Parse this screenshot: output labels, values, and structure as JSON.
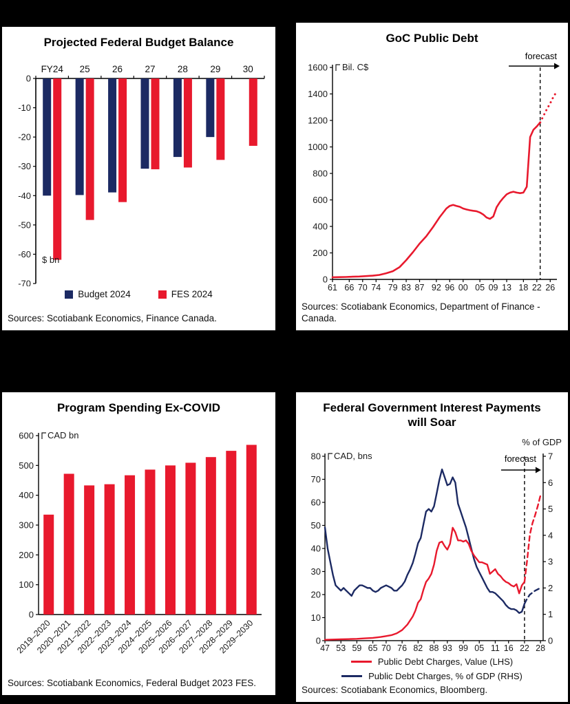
{
  "colors": {
    "red": "#E8192D",
    "navy": "#1C2A63",
    "axis": "#000000",
    "text": "#1A1A1A"
  },
  "panels": [
    {
      "title": "Projected Federal Budget Balance",
      "sources": "Sources: Scotiabank Economics, Finance Canada.",
      "legend": [
        {
          "label": "Budget 2024",
          "color_key": "navy"
        },
        {
          "label": "FES 2024",
          "color_key": "red"
        }
      ]
    },
    {
      "title": "GoC Public Debt",
      "sources": "Sources: Scotiabank Economics, Department of Finance - Canada."
    },
    {
      "title": "Program Spending Ex-COVID",
      "sources": "Sources: Scotiabank Economics, Federal Budget 2023 FES."
    },
    {
      "title": "Federal Government Interest Payments will Soar",
      "sources": "Sources: Scotiabank Economics, Bloomberg.",
      "legend": [
        {
          "label": "Public Debt Charges, Value (LHS)",
          "color_key": "red"
        },
        {
          "label": "Public Debt Charges, % of GDP (RHS)",
          "color_key": "navy"
        }
      ]
    }
  ],
  "chart_data": [
    {
      "type": "bar",
      "title": "Projected Federal Budget Balance",
      "categories": [
        "FY24",
        "25",
        "26",
        "27",
        "28",
        "29",
        "30"
      ],
      "series": [
        {
          "name": "Budget 2024",
          "color_key": "navy",
          "values": [
            -40.0,
            -39.8,
            -38.9,
            -30.8,
            -26.8,
            -20.0,
            null
          ]
        },
        {
          "name": "FES 2024",
          "color_key": "red",
          "values": [
            -61.9,
            -48.3,
            -42.2,
            -31.0,
            -30.4,
            -27.8,
            -23.0
          ]
        }
      ],
      "ylabel": "$ bn",
      "ylim": [
        -70,
        0
      ],
      "yticks": [
        0,
        -10,
        -20,
        -30,
        -40,
        -50,
        -60,
        -70
      ],
      "legend_position": "bottom"
    },
    {
      "type": "line",
      "title": "GoC Public Debt",
      "unit": "Bil. C$",
      "annotation": "forecast",
      "xlim": [
        1961,
        2028
      ],
      "ylim": [
        0,
        1600
      ],
      "yticks": [
        0,
        200,
        400,
        600,
        800,
        1000,
        1200,
        1400,
        1600
      ],
      "xticks": [
        {
          "label": "61",
          "x": 1961
        },
        {
          "label": "66",
          "x": 1966
        },
        {
          "label": "70",
          "x": 1970
        },
        {
          "label": "74",
          "x": 1974
        },
        {
          "label": "79",
          "x": 1979
        },
        {
          "label": "83",
          "x": 1983
        },
        {
          "label": "87",
          "x": 1987
        },
        {
          "label": "92",
          "x": 1992
        },
        {
          "label": "96",
          "x": 1996
        },
        {
          "label": "00",
          "x": 2000
        },
        {
          "label": "05",
          "x": 2005
        },
        {
          "label": "09",
          "x": 2009
        },
        {
          "label": "13",
          "x": 2013
        },
        {
          "label": "18",
          "x": 2018
        },
        {
          "label": "22",
          "x": 2022
        },
        {
          "label": "26",
          "x": 2026
        }
      ],
      "forecast_x": 2023,
      "series": [
        {
          "name": "GoC public debt",
          "color_key": "red",
          "points": [
            [
              1961,
              16
            ],
            [
              1963,
              17
            ],
            [
              1965,
              18
            ],
            [
              1967,
              20
            ],
            [
              1969,
              22
            ],
            [
              1971,
              25
            ],
            [
              1973,
              28
            ],
            [
              1975,
              34
            ],
            [
              1977,
              46
            ],
            [
              1979,
              62
            ],
            [
              1981,
              92
            ],
            [
              1983,
              145
            ],
            [
              1985,
              205
            ],
            [
              1987,
              270
            ],
            [
              1989,
              325
            ],
            [
              1991,
              395
            ],
            [
              1993,
              470
            ],
            [
              1995,
              535
            ],
            [
              1996,
              555
            ],
            [
              1997,
              562
            ],
            [
              1998,
              555
            ],
            [
              1999,
              548
            ],
            [
              2000,
              535
            ],
            [
              2001,
              528
            ],
            [
              2002,
              522
            ],
            [
              2003,
              518
            ],
            [
              2004,
              515
            ],
            [
              2005,
              505
            ],
            [
              2006,
              490
            ],
            [
              2007,
              467
            ],
            [
              2008,
              457
            ],
            [
              2009,
              475
            ],
            [
              2010,
              545
            ],
            [
              2011,
              585
            ],
            [
              2012,
              615
            ],
            [
              2013,
              642
            ],
            [
              2014,
              655
            ],
            [
              2015,
              662
            ],
            [
              2016,
              655
            ],
            [
              2017,
              651
            ],
            [
              2018,
              655
            ],
            [
              2019,
              700
            ],
            [
              2020,
              1075
            ],
            [
              2021,
              1130
            ],
            [
              2022,
              1155
            ],
            [
              2023,
              1185
            ]
          ],
          "forecast_points": [
            [
              2023,
              1185
            ],
            [
              2024,
              1235
            ],
            [
              2025,
              1285
            ],
            [
              2026,
              1330
            ],
            [
              2027,
              1380
            ],
            [
              2028,
              1420
            ]
          ]
        }
      ]
    },
    {
      "type": "bar",
      "title": "Program Spending Ex-COVID",
      "unit": "CAD bn",
      "color_key": "red",
      "categories": [
        "2019–2020",
        "2020–2021",
        "2021–2022",
        "2022–2023",
        "2023–2024",
        "2024–2025",
        "2025–2026",
        "2026–2027",
        "2027–2028",
        "2028–2029",
        "2029–2030"
      ],
      "values": [
        335,
        472,
        433,
        437,
        467,
        486,
        500,
        509,
        528,
        549,
        569
      ],
      "ylim": [
        0,
        600
      ],
      "yticks": [
        0,
        100,
        200,
        300,
        400,
        500,
        600
      ]
    },
    {
      "type": "line",
      "title": "Federal Government Interest Payments will Soar",
      "left_unit": "CAD, bns",
      "right_unit": "% of GDP",
      "annotation": "forecast",
      "xlim": [
        1947,
        2029
      ],
      "left_ylim": [
        0,
        80
      ],
      "right_ylim": [
        0,
        7
      ],
      "left_yticks": [
        0,
        10,
        20,
        30,
        40,
        50,
        60,
        70,
        80
      ],
      "right_yticks": [
        0,
        1,
        2,
        3,
        4,
        5,
        6,
        7
      ],
      "xticks": [
        {
          "label": "47",
          "x": 1947
        },
        {
          "label": "53",
          "x": 1953
        },
        {
          "label": "59",
          "x": 1959
        },
        {
          "label": "65",
          "x": 1965
        },
        {
          "label": "70",
          "x": 1970
        },
        {
          "label": "76",
          "x": 1976
        },
        {
          "label": "82",
          "x": 1982
        },
        {
          "label": "88",
          "x": 1988
        },
        {
          "label": "93",
          "x": 1993
        },
        {
          "label": "99",
          "x": 1999
        },
        {
          "label": "05",
          "x": 2005
        },
        {
          "label": "11",
          "x": 2011
        },
        {
          "label": "16",
          "x": 2016
        },
        {
          "label": "22",
          "x": 2022
        },
        {
          "label": "28",
          "x": 2028
        }
      ],
      "forecast_x": 2022,
      "series": [
        {
          "name": "Public Debt Charges, Value (LHS)",
          "axis": "left",
          "color_key": "red",
          "points": [
            [
              1947,
              0.4
            ],
            [
              1950,
              0.5
            ],
            [
              1953,
              0.6
            ],
            [
              1956,
              0.7
            ],
            [
              1959,
              0.8
            ],
            [
              1962,
              1.0
            ],
            [
              1965,
              1.2
            ],
            [
              1968,
              1.6
            ],
            [
              1970,
              2.0
            ],
            [
              1972,
              2.4
            ],
            [
              1974,
              3.2
            ],
            [
              1976,
              4.6
            ],
            [
              1978,
              7
            ],
            [
              1980,
              10.5
            ],
            [
              1981,
              13
            ],
            [
              1982,
              16.5
            ],
            [
              1983,
              18
            ],
            [
              1984,
              22
            ],
            [
              1985,
              25.5
            ],
            [
              1986,
              27
            ],
            [
              1987,
              29
            ],
            [
              1988,
              33
            ],
            [
              1989,
              39
            ],
            [
              1990,
              42.5
            ],
            [
              1991,
              43
            ],
            [
              1992,
              41
            ],
            [
              1993,
              39.5
            ],
            [
              1994,
              42
            ],
            [
              1995,
              49
            ],
            [
              1996,
              47
            ],
            [
              1997,
              43.5
            ],
            [
              1998,
              43.5
            ],
            [
              1999,
              43
            ],
            [
              2000,
              43.5
            ],
            [
              2001,
              42
            ],
            [
              2002,
              39
            ],
            [
              2003,
              37
            ],
            [
              2004,
              35.5
            ],
            [
              2005,
              34
            ],
            [
              2006,
              34
            ],
            [
              2007,
              33.5
            ],
            [
              2008,
              33
            ],
            [
              2009,
              29
            ],
            [
              2010,
              30
            ],
            [
              2011,
              31
            ],
            [
              2012,
              29
            ],
            [
              2013,
              28
            ],
            [
              2014,
              26.5
            ],
            [
              2015,
              25.5
            ],
            [
              2016,
              25
            ],
            [
              2017,
              24
            ],
            [
              2018,
              23.5
            ],
            [
              2019,
              24.5
            ],
            [
              2020,
              20.5
            ],
            [
              2021,
              24
            ],
            [
              2022,
              25.5
            ]
          ],
          "forecast_points": [
            [
              2022,
              25.5
            ],
            [
              2023,
              35
            ],
            [
              2024,
              46
            ],
            [
              2025,
              51
            ],
            [
              2026,
              54.5
            ],
            [
              2027,
              58.5
            ],
            [
              2028,
              63
            ]
          ]
        },
        {
          "name": "Public Debt Charges, % of GDP (RHS)",
          "axis": "right",
          "color_key": "navy",
          "points": [
            [
              1947,
              4.3
            ],
            [
              1948,
              3.5
            ],
            [
              1949,
              3.0
            ],
            [
              1950,
              2.5
            ],
            [
              1951,
              2.1
            ],
            [
              1952,
              2.0
            ],
            [
              1953,
              1.9
            ],
            [
              1954,
              2.0
            ],
            [
              1955,
              1.9
            ],
            [
              1956,
              1.8
            ],
            [
              1957,
              1.7
            ],
            [
              1958,
              1.9
            ],
            [
              1959,
              2.0
            ],
            [
              1960,
              2.1
            ],
            [
              1961,
              2.1
            ],
            [
              1962,
              2.05
            ],
            [
              1963,
              2.0
            ],
            [
              1964,
              2.0
            ],
            [
              1965,
              1.9
            ],
            [
              1966,
              1.85
            ],
            [
              1967,
              1.9
            ],
            [
              1968,
              2.0
            ],
            [
              1969,
              2.05
            ],
            [
              1970,
              2.1
            ],
            [
              1971,
              2.05
            ],
            [
              1972,
              2.0
            ],
            [
              1973,
              1.9
            ],
            [
              1974,
              1.9
            ],
            [
              1975,
              2.0
            ],
            [
              1976,
              2.1
            ],
            [
              1977,
              2.25
            ],
            [
              1978,
              2.5
            ],
            [
              1979,
              2.7
            ],
            [
              1980,
              2.95
            ],
            [
              1981,
              3.3
            ],
            [
              1982,
              3.7
            ],
            [
              1983,
              3.9
            ],
            [
              1984,
              4.4
            ],
            [
              1985,
              4.9
            ],
            [
              1986,
              5.0
            ],
            [
              1987,
              4.9
            ],
            [
              1988,
              5.1
            ],
            [
              1989,
              5.6
            ],
            [
              1990,
              6.1
            ],
            [
              1991,
              6.5
            ],
            [
              1992,
              6.2
            ],
            [
              1993,
              5.9
            ],
            [
              1994,
              5.95
            ],
            [
              1995,
              6.2
            ],
            [
              1996,
              6.0
            ],
            [
              1997,
              5.2
            ],
            [
              1998,
              4.9
            ],
            [
              1999,
              4.6
            ],
            [
              2000,
              4.3
            ],
            [
              2001,
              3.9
            ],
            [
              2002,
              3.5
            ],
            [
              2003,
              3.1
            ],
            [
              2004,
              2.8
            ],
            [
              2005,
              2.6
            ],
            [
              2006,
              2.4
            ],
            [
              2007,
              2.2
            ],
            [
              2008,
              2.0
            ],
            [
              2009,
              1.85
            ],
            [
              2010,
              1.85
            ],
            [
              2011,
              1.8
            ],
            [
              2012,
              1.7
            ],
            [
              2013,
              1.6
            ],
            [
              2014,
              1.5
            ],
            [
              2015,
              1.35
            ],
            [
              2016,
              1.25
            ],
            [
              2017,
              1.2
            ],
            [
              2018,
              1.2
            ],
            [
              2019,
              1.15
            ],
            [
              2020,
              1.05
            ],
            [
              2021,
              1.1
            ],
            [
              2022,
              1.4
            ]
          ],
          "forecast_points": [
            [
              2022,
              1.4
            ],
            [
              2023,
              1.6
            ],
            [
              2024,
              1.75
            ],
            [
              2026,
              1.9
            ],
            [
              2028,
              2.0
            ]
          ]
        }
      ]
    }
  ]
}
